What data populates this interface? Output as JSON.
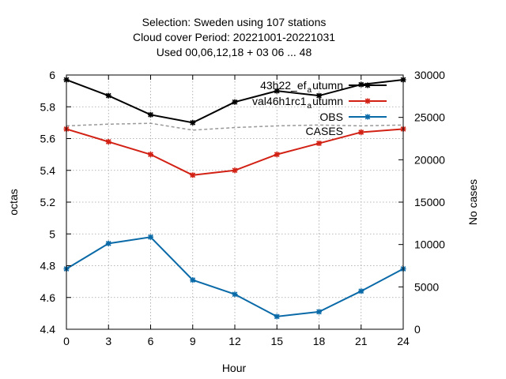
{
  "chart_data": {
    "type": "line",
    "title_lines": [
      "Selection: Sweden using   107 stations",
      "Cloud cover   Period: 20221001-20221031",
      "Used  00,06,12,18  + 03 06 ... 48"
    ],
    "xlabel": "Hour",
    "ylabel": "octas",
    "y2label": "No cases",
    "x": [
      0,
      3,
      6,
      9,
      12,
      15,
      18,
      21,
      24
    ],
    "xlim": [
      0,
      24
    ],
    "ylim": [
      4.4,
      6.0
    ],
    "y2lim": [
      0,
      30000
    ],
    "x_ticks": [
      "0",
      "3",
      "6",
      "9",
      "12",
      "15",
      "18",
      "21",
      "24"
    ],
    "y_ticks": [
      "4.4",
      "4.6",
      "4.8",
      "5",
      "5.2",
      "5.4",
      "5.6",
      "5.8",
      "6"
    ],
    "y2_ticks": [
      "0",
      "5000",
      "10000",
      "15000",
      "20000",
      "25000",
      "30000"
    ],
    "grid": true,
    "legend_position": "top-right",
    "series": [
      {
        "name": "43h22_ef",
        "name_sub": "a",
        "name_suffix": "utumn",
        "color": "#000000",
        "axis": "y1",
        "values": [
          5.97,
          5.87,
          5.75,
          5.7,
          5.83,
          5.9,
          5.87,
          5.94,
          5.97
        ]
      },
      {
        "name": "val46h1rc1",
        "name_sub": "a",
        "name_suffix": "utumn",
        "color": "#d22114",
        "axis": "y1",
        "values": [
          5.66,
          5.58,
          5.5,
          5.37,
          5.4,
          5.5,
          5.57,
          5.64,
          5.66
        ]
      },
      {
        "name": "OBS",
        "color": "#0a6aa8",
        "axis": "y1",
        "values": [
          4.78,
          4.94,
          4.98,
          4.71,
          4.62,
          4.48,
          4.51,
          4.64,
          4.78
        ]
      },
      {
        "name": "CASES",
        "color": "#999999",
        "axis": "y2",
        "dashed": true,
        "values": [
          24000,
          24200,
          24300,
          23500,
          23800,
          24000,
          24100,
          24000,
          24100
        ]
      }
    ]
  }
}
